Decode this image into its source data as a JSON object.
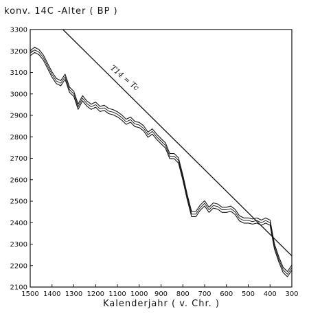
{
  "chart_data": {
    "type": "line",
    "ylabel": "konv. 14C -Alter ( BP )",
    "xlabel": "Kalenderjahr ( v. Chr. )",
    "xlim": [
      1500,
      300
    ],
    "ylim": [
      2100,
      3300
    ],
    "x_ticks": [
      1500,
      1400,
      1300,
      1200,
      1100,
      1000,
      900,
      800,
      700,
      600,
      500,
      400,
      300
    ],
    "y_ticks": [
      2100,
      2200,
      2300,
      2400,
      2500,
      2600,
      2700,
      2800,
      2900,
      3000,
      3100,
      3200,
      3300
    ],
    "grid": false,
    "legend": "none",
    "annotation": "T14 = Tc",
    "reference_line": {
      "x": [
        1350,
        300
      ],
      "y": [
        3300,
        2245
      ]
    },
    "calibration_curve": {
      "x": [
        1500,
        1480,
        1460,
        1440,
        1420,
        1400,
        1380,
        1360,
        1340,
        1320,
        1300,
        1280,
        1260,
        1240,
        1220,
        1200,
        1180,
        1160,
        1140,
        1120,
        1100,
        1080,
        1060,
        1040,
        1020,
        1000,
        980,
        960,
        940,
        920,
        900,
        880,
        860,
        840,
        820,
        800,
        780,
        760,
        740,
        720,
        700,
        680,
        660,
        640,
        620,
        600,
        580,
        560,
        540,
        520,
        500,
        480,
        460,
        440,
        420,
        400,
        380,
        360,
        340,
        320,
        300
      ],
      "y": [
        3190,
        3205,
        3195,
        3170,
        3130,
        3090,
        3060,
        3050,
        3080,
        3020,
        3000,
        2940,
        2980,
        2955,
        2940,
        2950,
        2930,
        2935,
        2920,
        2915,
        2905,
        2890,
        2870,
        2880,
        2860,
        2855,
        2840,
        2810,
        2825,
        2800,
        2780,
        2760,
        2710,
        2710,
        2690,
        2610,
        2520,
        2440,
        2440,
        2470,
        2490,
        2460,
        2480,
        2475,
        2460,
        2460,
        2465,
        2450,
        2420,
        2410,
        2410,
        2405,
        2410,
        2400,
        2410,
        2400,
        2290,
        2230,
        2180,
        2160,
        2190
      ]
    },
    "band_offset": 12
  }
}
